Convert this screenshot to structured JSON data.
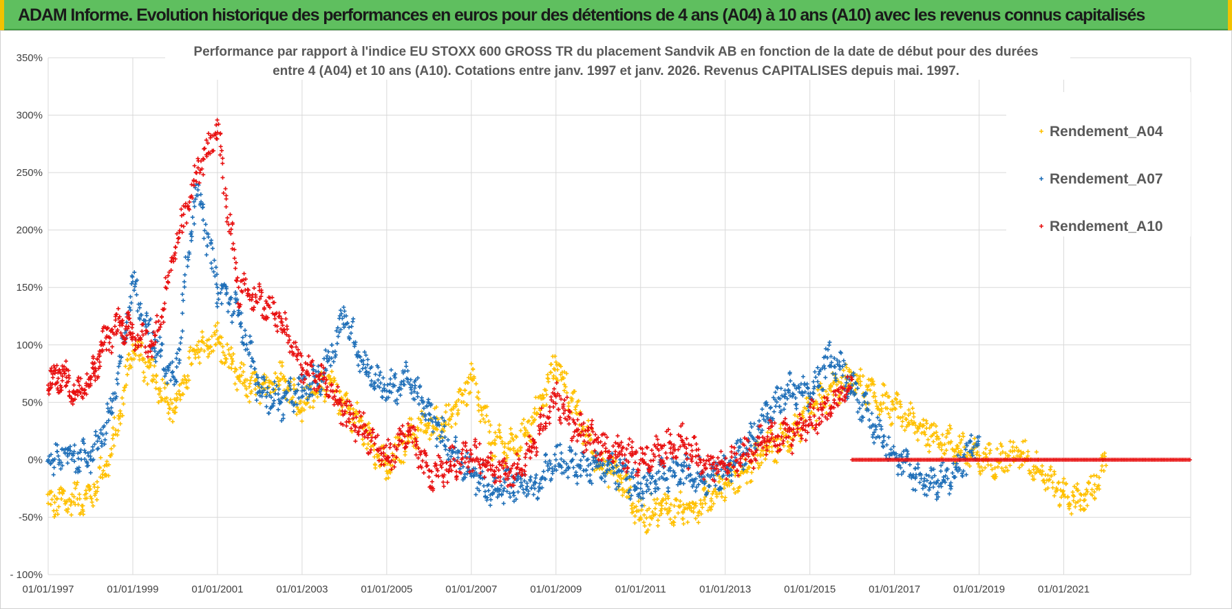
{
  "banner": {
    "title": "ADAM Informe. Evolution historique des performances en euros pour des détentions de 4 ans (A04) à 10 ans (A10) avec les revenus connus capitalisés"
  },
  "colors": {
    "banner_bg": "#5fbf5f",
    "banner_accent": "#f2c200",
    "a04": "#ffc000",
    "a07": "#1f6fb8",
    "a10": "#e81010",
    "grid": "#d9d9d9"
  },
  "chart_data": {
    "type": "scatter",
    "title_line1": "Performance par rapport à l'indice EU STOXX 600 GROSS TR  du placement Sandvik AB en fonction de la date de début pour des durées",
    "title_line2": "entre 4 (A04) et 10 ans (A10).  Cotations entre janv. 1997 et janv. 2026. Revenus CAPITALISES depuis mai. 1997.",
    "xlabel": "",
    "ylabel": "",
    "xlim": [
      1997.0,
      2024.0
    ],
    "ylim": [
      -100,
      350
    ],
    "x_tick_labels": [
      "01/01/1997",
      "01/01/1999",
      "01/01/2001",
      "01/01/2003",
      "01/01/2005",
      "01/01/2007",
      "01/01/2009",
      "01/01/2011",
      "01/01/2013",
      "01/01/2015",
      "01/01/2017",
      "01/01/2019",
      "01/01/2021"
    ],
    "x_tick_values": [
      1997,
      1999,
      2001,
      2003,
      2005,
      2007,
      2009,
      2011,
      2013,
      2015,
      2017,
      2019,
      2021
    ],
    "y_tick_labels": [
      "- 100%",
      "-50%",
      "0%",
      "50%",
      "100%",
      "150%",
      "200%",
      "250%",
      "300%",
      "350%"
    ],
    "y_tick_values": [
      -100,
      -50,
      0,
      50,
      100,
      150,
      200,
      250,
      300,
      350
    ],
    "grid": true,
    "legend_position": "top-right",
    "series": [
      {
        "name": "Rendement_A04",
        "color": "#ffc000",
        "x": [
          1997.0,
          1997.5,
          1998.0,
          1998.5,
          1999.0,
          1999.5,
          2000.0,
          2000.5,
          2001.0,
          2001.5,
          2002.0,
          2002.5,
          2003.0,
          2003.5,
          2004.0,
          2004.5,
          2005.0,
          2005.5,
          2006.0,
          2006.5,
          2007.0,
          2007.5,
          2008.0,
          2008.5,
          2009.0,
          2009.5,
          2010.0,
          2010.5,
          2011.0,
          2011.5,
          2012.0,
          2012.5,
          2013.0,
          2013.5,
          2014.0,
          2014.5,
          2015.0,
          2015.5,
          2016.0,
          2016.5,
          2017.0,
          2017.5,
          2018.0,
          2018.5,
          2019.0,
          2019.5,
          2020.0,
          2020.5,
          2021.0,
          2021.5,
          2022.0
        ],
        "values": [
          -38,
          -35,
          -32,
          5,
          100,
          70,
          45,
          95,
          105,
          70,
          60,
          75,
          45,
          70,
          50,
          25,
          -10,
          20,
          30,
          35,
          70,
          15,
          10,
          35,
          85,
          40,
          0,
          -15,
          -50,
          -40,
          -45,
          -35,
          -20,
          -10,
          10,
          20,
          40,
          60,
          70,
          55,
          45,
          30,
          20,
          10,
          0,
          0,
          5,
          -10,
          -30,
          -35,
          -5
        ]
      },
      {
        "name": "Rendement_A07",
        "color": "#1f6fb8",
        "x": [
          1997.0,
          1997.5,
          1998.0,
          1998.5,
          1999.0,
          1999.5,
          2000.0,
          2000.5,
          2001.0,
          2001.5,
          2002.0,
          2002.5,
          2003.0,
          2003.5,
          2004.0,
          2004.5,
          2005.0,
          2005.5,
          2006.0,
          2006.5,
          2007.0,
          2007.5,
          2008.0,
          2008.5,
          2009.0,
          2009.5,
          2010.0,
          2010.5,
          2011.0,
          2011.5,
          2012.0,
          2012.5,
          2013.0,
          2013.5,
          2014.0,
          2014.5,
          2015.0,
          2015.5,
          2016.0,
          2016.5,
          2017.0,
          2017.5,
          2018.0,
          2018.5,
          2019.0
        ],
        "values": [
          0,
          5,
          0,
          40,
          155,
          100,
          70,
          240,
          150,
          130,
          60,
          50,
          60,
          75,
          125,
          80,
          60,
          70,
          40,
          10,
          -10,
          -30,
          -20,
          -25,
          0,
          -5,
          -5,
          -10,
          -25,
          -15,
          -10,
          -15,
          -10,
          10,
          40,
          60,
          55,
          90,
          65,
          30,
          5,
          -15,
          -20,
          -10,
          20
        ]
      },
      {
        "name": "Rendement_A10",
        "color": "#e81010",
        "x": [
          1997.0,
          1997.3,
          1997.6,
          1998.0,
          1998.3,
          1998.7,
          1999.0,
          1999.5,
          2000.0,
          2000.5,
          2001.0,
          2001.5,
          2002.0,
          2002.5,
          2003.0,
          2003.5,
          2004.0,
          2004.5,
          2005.0,
          2005.5,
          2006.0,
          2006.5,
          2007.0,
          2007.5,
          2008.0,
          2008.5,
          2009.0,
          2009.5,
          2010.0,
          2010.5,
          2011.0,
          2011.5,
          2012.0,
          2012.5,
          2013.0,
          2013.5,
          2014.0,
          2014.5,
          2015.0,
          2015.5,
          2016.0
        ],
        "values": [
          65,
          75,
          60,
          70,
          100,
          120,
          110,
          100,
          180,
          250,
          285,
          150,
          140,
          120,
          80,
          70,
          40,
          25,
          0,
          25,
          -15,
          -5,
          5,
          -5,
          -15,
          15,
          55,
          25,
          15,
          5,
          0,
          10,
          15,
          -5,
          -5,
          5,
          20,
          20,
          35,
          45,
          70
        ]
      }
    ],
    "zero_line_series": {
      "name": "Rendement_A10",
      "x_start": 2016.0,
      "x_end": 2024.0,
      "value": 0
    }
  }
}
